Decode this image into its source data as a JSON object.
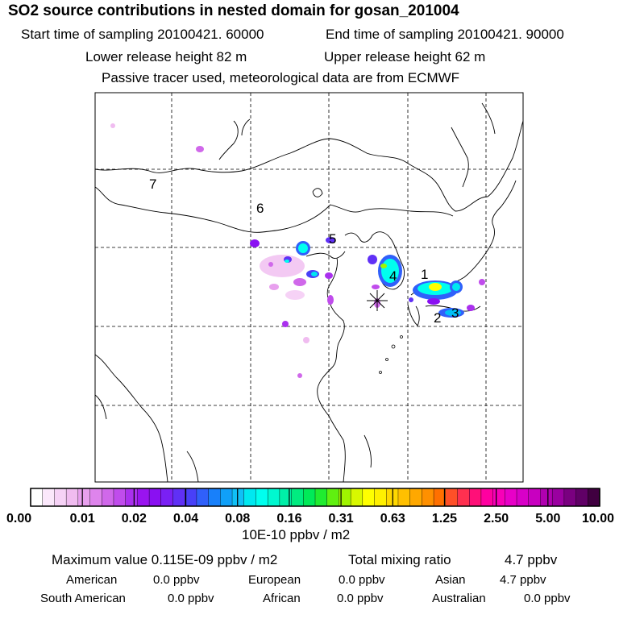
{
  "header": {
    "title": "SO2 source contributions in nested domain for gosan_201004",
    "start_time": "Start time of sampling 20100421. 60000",
    "end_time": "End time of sampling 20100421. 90000",
    "lower_height": "Lower release height   82 m",
    "upper_height": "Upper release height   62 m",
    "tracer_note": "Passive tracer used, meteorological data are from ECMWF"
  },
  "chart_data": {
    "type": "heatmap",
    "title": "SO2 source contributions in nested domain for gosan_201004",
    "colorbar": {
      "tick_labels": [
        "0.00",
        "0.01",
        "0.02",
        "0.04",
        "0.08",
        "0.16",
        "0.31",
        "0.63",
        "1.25",
        "2.50",
        "5.00",
        "10.00"
      ],
      "unit_label": "10E-10 ppbv / m2",
      "colors": [
        "#ffffff",
        "#fbe8fb",
        "#f6d2f6",
        "#f0bcf0",
        "#e8a0ee",
        "#de84ec",
        "#d068ea",
        "#c04cec",
        "#aa30ee",
        "#9a14f0",
        "#8a10f2",
        "#7a20f4",
        "#6030f6",
        "#4840f8",
        "#3060fa",
        "#1880fa",
        "#10a0f8",
        "#10c0f6",
        "#00e8f0",
        "#00ffee",
        "#00f8d0",
        "#00f0a8",
        "#00ec80",
        "#00ea58",
        "#20ec30",
        "#60f010",
        "#a0f400",
        "#d8f800",
        "#ffff00",
        "#fff000",
        "#ffd800",
        "#ffc000",
        "#ffa800",
        "#ff9000",
        "#ff7000",
        "#ff5028",
        "#ff3050",
        "#ff1078",
        "#ff00a0",
        "#f800b8",
        "#e800c8",
        "#d800c8",
        "#c800c0",
        "#b000b0",
        "#9a00a0",
        "#7a0080",
        "#600066",
        "#400040"
      ]
    },
    "region_labels": [
      "1",
      "2",
      "3",
      "4",
      "5",
      "6",
      "7"
    ],
    "receptor": "gosan",
    "max_value": "Maximum value  0.115E-09 ppbv / m2",
    "total_mixing": "Total mixing ratio",
    "total_value": "4.7 ppbv",
    "regions": [
      {
        "name": "American",
        "value": "0.0 ppbv"
      },
      {
        "name": "European",
        "value": "0.0 ppbv"
      },
      {
        "name": "Asian",
        "value": "4.7 ppbv"
      },
      {
        "name": "South American",
        "value": "0.0 ppbv"
      },
      {
        "name": "African",
        "value": "0.0 ppbv"
      },
      {
        "name": "Australian",
        "value": "0.0 ppbv"
      }
    ]
  }
}
